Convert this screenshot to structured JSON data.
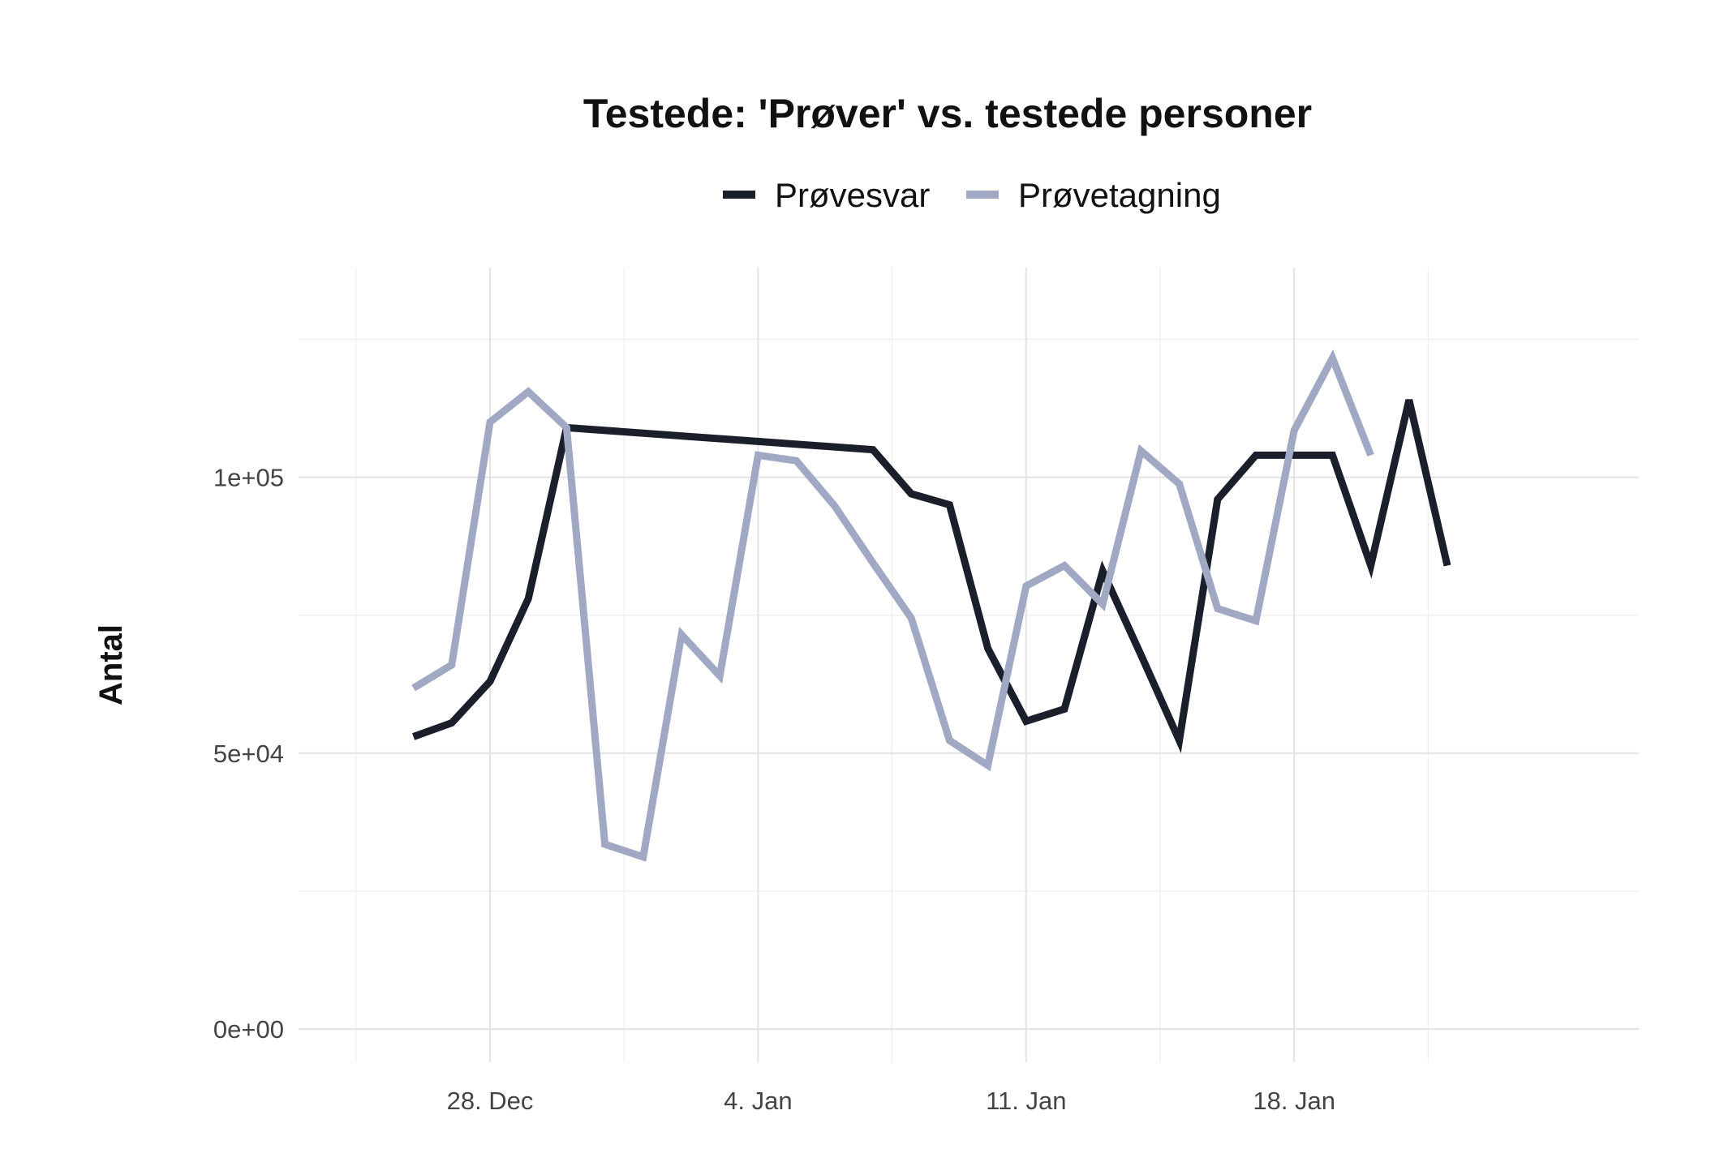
{
  "chart_data": {
    "type": "line",
    "title": "Testede: 'Prøver' vs. testede personer",
    "xlabel": "",
    "ylabel": "Antal",
    "x_start": "2020-12-25",
    "x_ticks": [
      {
        "date": "2020-12-28",
        "label": "28. Dec"
      },
      {
        "date": "2021-01-04",
        "label": "4. Jan"
      },
      {
        "date": "2021-01-11",
        "label": "11. Jan"
      },
      {
        "date": "2021-01-18",
        "label": "18. Jan"
      }
    ],
    "xlim": [
      "2020-12-23",
      "2021-01-27"
    ],
    "y_ticks": [
      {
        "value": 0,
        "label": "0e+00"
      },
      {
        "value": 50000,
        "label": "5e+04"
      },
      {
        "value": 100000,
        "label": "1e+05"
      }
    ],
    "ylim": [
      -6000,
      138000
    ],
    "grid": true,
    "legend": {
      "position": "top"
    },
    "series": [
      {
        "name": "Prøvesvar",
        "color": "#1b1e2b",
        "points": [
          [
            "2020-12-26",
            53000
          ],
          [
            "2020-12-27",
            55500
          ],
          [
            "2020-12-28",
            63000
          ],
          [
            "2020-12-29",
            78000
          ],
          [
            "2020-12-30",
            109000
          ],
          [
            "2021-01-07",
            105000
          ],
          [
            "2021-01-08",
            97000
          ],
          [
            "2021-01-09",
            95000
          ],
          [
            "2021-01-10",
            69000
          ],
          [
            "2021-01-11",
            55800
          ],
          [
            "2021-01-12",
            58000
          ],
          [
            "2021-01-13",
            83000
          ],
          [
            "2021-01-14",
            67800
          ],
          [
            "2021-01-15",
            52300
          ],
          [
            "2021-01-16",
            96000
          ],
          [
            "2021-01-17",
            104000
          ],
          [
            "2021-01-18",
            104000
          ],
          [
            "2021-01-19",
            104000
          ],
          [
            "2021-01-20",
            84000
          ],
          [
            "2021-01-21",
            114000
          ],
          [
            "2021-01-22",
            84000
          ]
        ]
      },
      {
        "name": "Prøvetagning",
        "color": "#a0a8c3",
        "points": [
          [
            "2020-12-26",
            61800
          ],
          [
            "2020-12-27",
            66000
          ],
          [
            "2020-12-28",
            110000
          ],
          [
            "2020-12-29",
            115500
          ],
          [
            "2020-12-30",
            109000
          ],
          [
            "2020-12-31",
            33500
          ],
          [
            "2021-01-01",
            31200
          ],
          [
            "2021-01-02",
            71500
          ],
          [
            "2021-01-03",
            64000
          ],
          [
            "2021-01-04",
            104000
          ],
          [
            "2021-01-05",
            103000
          ],
          [
            "2021-01-06",
            94800
          ],
          [
            "2021-01-07",
            84500
          ],
          [
            "2021-01-08",
            74500
          ],
          [
            "2021-01-09",
            52300
          ],
          [
            "2021-01-10",
            47800
          ],
          [
            "2021-01-11",
            80300
          ],
          [
            "2021-01-12",
            84000
          ],
          [
            "2021-01-13",
            77000
          ],
          [
            "2021-01-14",
            104800
          ],
          [
            "2021-01-15",
            98800
          ],
          [
            "2021-01-16",
            76200
          ],
          [
            "2021-01-17",
            74000
          ],
          [
            "2021-01-18",
            108500
          ],
          [
            "2021-01-19",
            121600
          ],
          [
            "2021-01-20",
            104000
          ]
        ]
      }
    ]
  }
}
